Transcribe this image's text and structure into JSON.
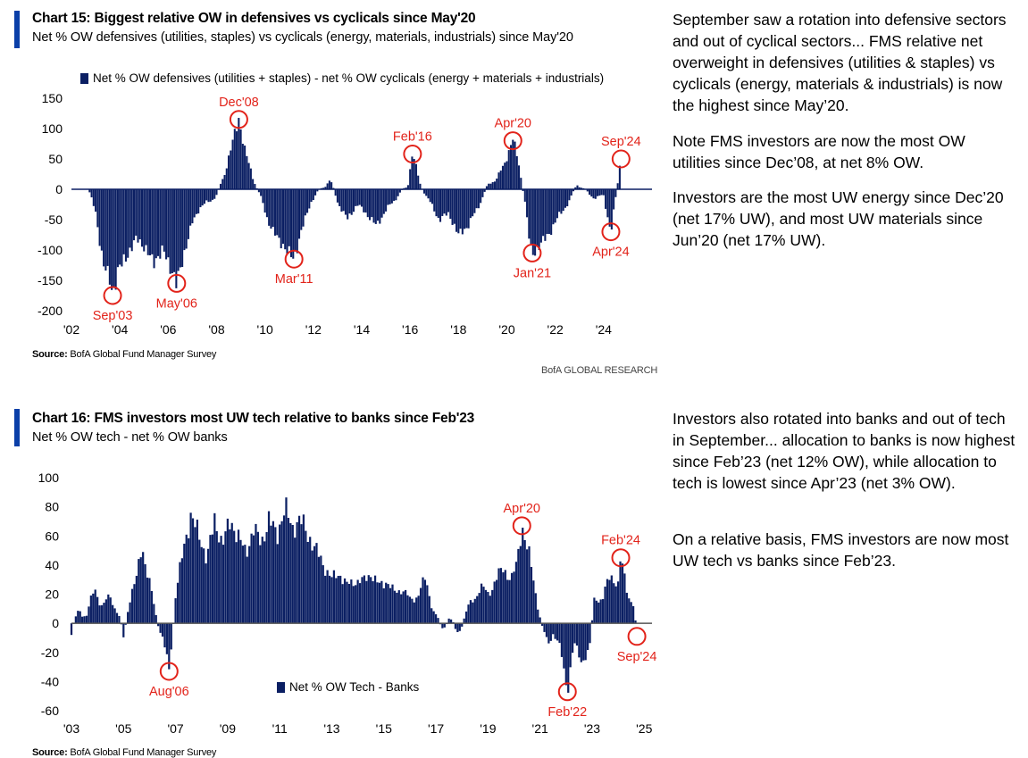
{
  "chart1": {
    "title": "Chart 15: Biggest relative OW in defensives vs cyclicals since May'20",
    "subtitle": "Net % OW defensives (utilities, staples) vs cyclicals (energy, materials, industrials) since May'20",
    "source_label": "Source:",
    "source_text": "BofA Global Fund Manager Survey",
    "brand": "BofA GLOBAL RESEARCH",
    "paragraphs": [
      "September saw a rotation into defensive sectors and out of cyclical sectors... FMS relative net overweight in defensives (utilities & staples) vs cyclicals (energy, materials & industrials) is now the highest since May’20.",
      "Note FMS investors are now the most OW utilities since Dec’08, at net 8% OW.",
      "Investors are the most UW energy since Dec’20 (net 17% UW), and most UW materials since Jun’20 (net 17% UW)."
    ]
  },
  "chart2": {
    "title": "Chart 16: FMS investors most UW tech relative to banks since Feb'23",
    "subtitle": "Net % OW tech - net % OW banks",
    "source_label": "Source:",
    "source_text": "BofA Global Fund Manager Survey",
    "paragraphs": [
      "Investors also rotated into banks and out of tech in September... allocation to banks is now highest since Feb’23 (net 12% OW), while allocation to tech is lowest since Apr’23 (net 3% OW).",
      "On a relative basis, FMS investors are now most UW tech vs banks since Feb’23."
    ]
  },
  "chart_data": [
    {
      "type": "bar",
      "legend": "Net % OW defensives (utilities + staples) - net % OW cyclicals (energy + materials + industrials)",
      "legend_position": "top",
      "bar_color": "#0b1f63",
      "annotation_color": "#e2231a",
      "ylim": [
        -200,
        150
      ],
      "yticks": [
        150,
        100,
        50,
        0,
        -50,
        -100,
        -150,
        -200
      ],
      "xlim": [
        2002,
        2026
      ],
      "xticks": [
        "'02",
        "'04",
        "'06",
        "'08",
        "'10",
        "'12",
        "'14",
        "'16",
        "'18",
        "'20",
        "'22",
        "'24"
      ],
      "xtick_years": [
        2002,
        2004,
        2006,
        2008,
        2010,
        2012,
        2014,
        2016,
        2018,
        2020,
        2022,
        2024
      ],
      "series": [
        {
          "knots": [
            [
              2002.75,
              -5
            ],
            [
              2003.0,
              -40
            ],
            [
              2003.3,
              -120
            ],
            [
              2003.6,
              -150
            ],
            [
              2003.7,
              -175
            ],
            [
              2003.95,
              -130
            ],
            [
              2004.3,
              -110
            ],
            [
              2004.7,
              -80
            ],
            [
              2005.0,
              -95
            ],
            [
              2005.4,
              -120
            ],
            [
              2005.8,
              -100
            ],
            [
              2006.1,
              -130
            ],
            [
              2006.35,
              -155
            ],
            [
              2006.7,
              -100
            ],
            [
              2007.0,
              -55
            ],
            [
              2007.3,
              -30
            ],
            [
              2007.7,
              -20
            ],
            [
              2008.0,
              -10
            ],
            [
              2008.3,
              20
            ],
            [
              2008.6,
              70
            ],
            [
              2008.92,
              115
            ],
            [
              2009.2,
              60
            ],
            [
              2009.5,
              20
            ],
            [
              2009.8,
              -10
            ],
            [
              2010.1,
              -50
            ],
            [
              2010.5,
              -80
            ],
            [
              2010.9,
              -100
            ],
            [
              2011.2,
              -115
            ],
            [
              2011.5,
              -70
            ],
            [
              2011.9,
              -20
            ],
            [
              2012.3,
              0
            ],
            [
              2012.7,
              15
            ],
            [
              2013.0,
              -20
            ],
            [
              2013.4,
              -50
            ],
            [
              2013.8,
              -25
            ],
            [
              2014.2,
              -40
            ],
            [
              2014.6,
              -60
            ],
            [
              2015.0,
              -35
            ],
            [
              2015.5,
              -10
            ],
            [
              2015.9,
              5
            ],
            [
              2016.1,
              62
            ],
            [
              2016.4,
              10
            ],
            [
              2016.8,
              -20
            ],
            [
              2017.2,
              -50
            ],
            [
              2017.6,
              -40
            ],
            [
              2018.0,
              -75
            ],
            [
              2018.4,
              -60
            ],
            [
              2018.8,
              -30
            ],
            [
              2019.2,
              5
            ],
            [
              2019.6,
              20
            ],
            [
              2019.9,
              40
            ],
            [
              2020.25,
              85
            ],
            [
              2020.5,
              40
            ],
            [
              2020.75,
              -20
            ],
            [
              2020.95,
              -90
            ],
            [
              2021.05,
              -108
            ],
            [
              2021.4,
              -90
            ],
            [
              2021.8,
              -70
            ],
            [
              2022.2,
              -40
            ],
            [
              2022.6,
              -20
            ],
            [
              2022.9,
              10
            ],
            [
              2023.3,
              -5
            ],
            [
              2023.7,
              -15
            ],
            [
              2024.0,
              -10
            ],
            [
              2024.3,
              -73
            ],
            [
              2024.55,
              0
            ],
            [
              2024.72,
              56
            ]
          ]
        }
      ],
      "annotations": [
        {
          "label": "Sep'03",
          "x": 2003.7,
          "y": -175,
          "text_pos": "below"
        },
        {
          "label": "May'06",
          "x": 2006.35,
          "y": -155,
          "text_pos": "below"
        },
        {
          "label": "Dec'08",
          "x": 2008.92,
          "y": 115,
          "text_pos": "above"
        },
        {
          "label": "Mar'11",
          "x": 2011.2,
          "y": -115,
          "text_pos": "below"
        },
        {
          "label": "Feb'16",
          "x": 2016.1,
          "y": 58,
          "text_pos": "above"
        },
        {
          "label": "Apr'20",
          "x": 2020.25,
          "y": 80,
          "text_pos": "above"
        },
        {
          "label": "Jan'21",
          "x": 2021.05,
          "y": -105,
          "text_pos": "below"
        },
        {
          "label": "Apr'24",
          "x": 2024.3,
          "y": -70,
          "text_pos": "below"
        },
        {
          "label": "Sep'24",
          "x": 2024.72,
          "y": 50,
          "text_pos": "above"
        }
      ]
    },
    {
      "type": "bar",
      "legend": "Net % OW Tech - Banks",
      "legend_position": "bottom-center",
      "bar_color": "#0b1f63",
      "annotation_color": "#e2231a",
      "ylim": [
        -60,
        100
      ],
      "yticks": [
        100,
        80,
        60,
        40,
        20,
        0,
        -20,
        -40,
        -60
      ],
      "xlim": [
        2003,
        2025.3
      ],
      "xticks": [
        "'03",
        "'05",
        "'07",
        "'09",
        "'11",
        "'13",
        "'15",
        "'17",
        "'19",
        "'21",
        "'23",
        "'25"
      ],
      "xtick_years": [
        2003,
        2005,
        2007,
        2009,
        2011,
        2013,
        2015,
        2017,
        2019,
        2021,
        2023,
        2025
      ],
      "series": [
        {
          "knots": [
            [
              2003.0,
              -8
            ],
            [
              2003.3,
              10
            ],
            [
              2003.6,
              5
            ],
            [
              2003.9,
              25
            ],
            [
              2004.2,
              10
            ],
            [
              2004.5,
              20
            ],
            [
              2004.8,
              5
            ],
            [
              2005.0,
              -10
            ],
            [
              2005.2,
              15
            ],
            [
              2005.5,
              30
            ],
            [
              2005.7,
              55
            ],
            [
              2005.9,
              35
            ],
            [
              2006.2,
              10
            ],
            [
              2006.5,
              -10
            ],
            [
              2006.75,
              -33
            ],
            [
              2007.0,
              20
            ],
            [
              2007.3,
              50
            ],
            [
              2007.6,
              75
            ],
            [
              2007.9,
              60
            ],
            [
              2008.2,
              45
            ],
            [
              2008.5,
              70
            ],
            [
              2008.8,
              55
            ],
            [
              2009.1,
              70
            ],
            [
              2009.4,
              60
            ],
            [
              2009.7,
              48
            ],
            [
              2010.0,
              65
            ],
            [
              2010.3,
              55
            ],
            [
              2010.6,
              72
            ],
            [
              2010.9,
              60
            ],
            [
              2011.2,
              80
            ],
            [
              2011.5,
              65
            ],
            [
              2011.8,
              72
            ],
            [
              2012.1,
              60
            ],
            [
              2012.4,
              50
            ],
            [
              2012.7,
              40
            ],
            [
              2013.0,
              30
            ],
            [
              2013.3,
              35
            ],
            [
              2013.6,
              25
            ],
            [
              2013.9,
              30
            ],
            [
              2014.2,
              28
            ],
            [
              2014.5,
              35
            ],
            [
              2014.8,
              25
            ],
            [
              2015.1,
              30
            ],
            [
              2015.4,
              20
            ],
            [
              2015.7,
              25
            ],
            [
              2016.0,
              15
            ],
            [
              2016.3,
              20
            ],
            [
              2016.6,
              30
            ],
            [
              2016.9,
              10
            ],
            [
              2017.2,
              -5
            ],
            [
              2017.5,
              5
            ],
            [
              2017.8,
              -8
            ],
            [
              2018.1,
              5
            ],
            [
              2018.4,
              15
            ],
            [
              2018.7,
              25
            ],
            [
              2019.0,
              20
            ],
            [
              2019.3,
              30
            ],
            [
              2019.6,
              38
            ],
            [
              2019.9,
              30
            ],
            [
              2020.1,
              40
            ],
            [
              2020.3,
              67
            ],
            [
              2020.6,
              45
            ],
            [
              2020.9,
              15
            ],
            [
              2021.1,
              -5
            ],
            [
              2021.3,
              -15
            ],
            [
              2021.5,
              -5
            ],
            [
              2021.8,
              -20
            ],
            [
              2022.05,
              -46
            ],
            [
              2022.3,
              -15
            ],
            [
              2022.6,
              -25
            ],
            [
              2022.9,
              -20
            ],
            [
              2023.1,
              20
            ],
            [
              2023.4,
              15
            ],
            [
              2023.7,
              35
            ],
            [
              2024.0,
              25
            ],
            [
              2024.1,
              45
            ],
            [
              2024.4,
              20
            ],
            [
              2024.6,
              10
            ],
            [
              2024.72,
              -10
            ]
          ]
        }
      ],
      "annotations": [
        {
          "label": "Aug'06",
          "x": 2006.75,
          "y": -33,
          "text_pos": "below"
        },
        {
          "label": "Apr'20",
          "x": 2020.3,
          "y": 67,
          "text_pos": "above"
        },
        {
          "label": "Feb'22",
          "x": 2022.05,
          "y": -47,
          "text_pos": "below"
        },
        {
          "label": "Feb'24",
          "x": 2024.1,
          "y": 45,
          "text_pos": "above"
        },
        {
          "label": "Sep'24",
          "x": 2024.72,
          "y": -9,
          "text_pos": "below"
        }
      ]
    }
  ]
}
